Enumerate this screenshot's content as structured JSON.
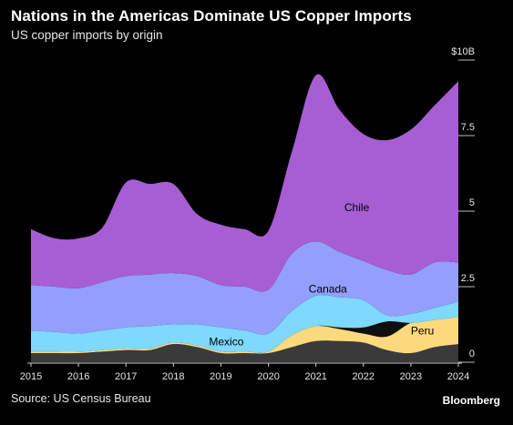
{
  "header": {
    "title": "Nations in the Americas Dominate US Copper Imports",
    "subtitle": "US copper imports by origin"
  },
  "footer": {
    "source": "Source: US Census Bureau",
    "brand": "Bloomberg"
  },
  "chart_data": {
    "type": "area",
    "stacked": true,
    "title": "Nations in the Americas Dominate US Copper Imports",
    "subtitle": "US copper imports by origin",
    "unit": "$B",
    "x": [
      2015.0,
      2015.5,
      2016.0,
      2016.5,
      2017.0,
      2017.5,
      2018.0,
      2018.5,
      2019.0,
      2019.5,
      2020.0,
      2020.5,
      2021.0,
      2021.5,
      2022.0,
      2022.5,
      2023.0,
      2023.5,
      2024.0
    ],
    "x_ticks": [
      "2015",
      "2016",
      "2017",
      "2018",
      "2019",
      "2020",
      "2021",
      "2022",
      "2023",
      "2024"
    ],
    "y_ticks": [
      "0",
      "2.5",
      "5",
      "7.5",
      "$10B"
    ],
    "ylim": [
      0,
      10
    ],
    "series": [
      {
        "name": "",
        "color": "#3a3a3a",
        "values": [
          0.3,
          0.3,
          0.3,
          0.35,
          0.4,
          0.4,
          0.6,
          0.5,
          0.3,
          0.3,
          0.3,
          0.5,
          0.7,
          0.7,
          0.65,
          0.4,
          0.3,
          0.5,
          0.6
        ]
      },
      {
        "name": "Peru",
        "color": "#fcd97d",
        "values": [
          0.05,
          0.05,
          0.05,
          0.05,
          0.05,
          0.05,
          0.05,
          0.05,
          0.05,
          0.05,
          0.05,
          0.4,
          0.5,
          0.4,
          0.3,
          0.45,
          1.0,
          0.9,
          0.9
        ]
      },
      {
        "name": "",
        "color": "#0f0f0f",
        "values": [
          0.0,
          0.0,
          0.0,
          0.0,
          0.0,
          0.0,
          0.0,
          0.0,
          0.0,
          0.0,
          0.0,
          0.0,
          0.0,
          0.05,
          0.2,
          0.5,
          0.0,
          0.0,
          0.0
        ]
      },
      {
        "name": "Mexico",
        "color": "#7fd8fd",
        "values": [
          0.7,
          0.65,
          0.6,
          0.65,
          0.7,
          0.75,
          0.6,
          0.7,
          0.8,
          0.7,
          0.6,
          0.8,
          1.0,
          1.0,
          0.9,
          0.2,
          0.3,
          0.4,
          0.5
        ]
      },
      {
        "name": "Canada",
        "color": "#929ffd",
        "values": [
          1.5,
          1.5,
          1.5,
          1.6,
          1.7,
          1.7,
          1.7,
          1.6,
          1.4,
          1.45,
          1.45,
          1.9,
          1.8,
          1.5,
          1.3,
          1.5,
          1.3,
          1.5,
          1.3
        ]
      },
      {
        "name": "Chile",
        "color": "#a65ed2",
        "values": [
          1.85,
          1.6,
          1.65,
          1.8,
          3.1,
          3.0,
          2.95,
          2.05,
          2.0,
          1.9,
          1.95,
          3.4,
          5.5,
          4.7,
          4.2,
          4.3,
          4.8,
          5.2,
          6.0
        ]
      }
    ],
    "legend": "inline labels",
    "grid": false
  }
}
